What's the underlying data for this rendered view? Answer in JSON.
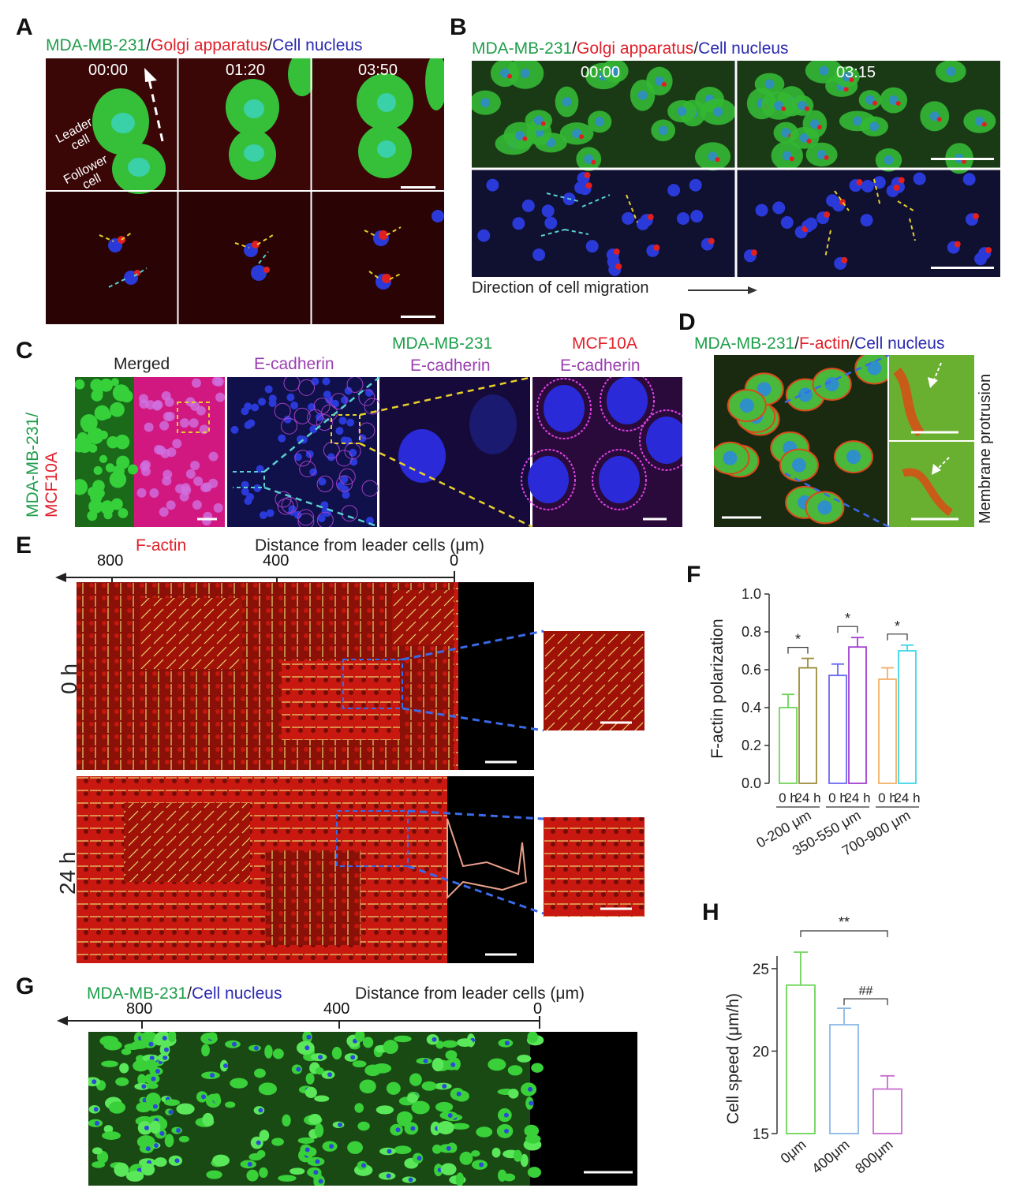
{
  "panels": {
    "A": {
      "letter": "A",
      "title_parts": [
        "MDA-MB-231",
        "/",
        "Golgi apparatus",
        "/",
        "Cell nucleus"
      ],
      "timestamps": [
        "00:00",
        "01:20",
        "03:50"
      ],
      "leader_label": "Leader cell",
      "follower_label": "Follower cell"
    },
    "B": {
      "letter": "B",
      "title_parts": [
        "MDA-MB-231",
        "/",
        "Golgi apparatus",
        "/",
        "Cell nucleus"
      ],
      "timestamps": [
        "00:00",
        "03:15"
      ],
      "direction_label": "Direction of cell migration"
    },
    "C": {
      "letter": "C",
      "side_label_top": "MDA-MB-231/",
      "side_label_bottom": "MCF10A",
      "col1": "Merged",
      "col2": "E-cadherin",
      "col3_top": "MDA-MB-231",
      "col3_bottom": "E-cadherin",
      "col4_top": "MCF10A",
      "col4_bottom": "E-cadherin"
    },
    "D": {
      "letter": "D",
      "title_parts": [
        "MDA-MB-231",
        "/",
        "F-actin",
        "/",
        "Cell nucleus"
      ],
      "side_label": "Membrane protrusion"
    },
    "E": {
      "letter": "E",
      "stain_label": "F-actin",
      "axis_title": "Distance from leader cells (μm)",
      "ticks": [
        "800",
        "400",
        "0"
      ],
      "row_labels": [
        "0 h",
        "24 h"
      ]
    },
    "G": {
      "letter": "G",
      "title_parts": [
        "MDA-MB-231",
        "/",
        "Cell nucleus"
      ],
      "axis_title": "Distance from leader cells (μm)",
      "ticks": [
        "800",
        "400",
        "0"
      ]
    }
  },
  "chart_data": [
    {
      "id": "F",
      "letter": "F",
      "type": "bar",
      "ylabel": "F-actin  polarization",
      "ylim": [
        0.0,
        1.0
      ],
      "yticks": [
        "0.0",
        "0.2",
        "0.4",
        "0.6",
        "0.8",
        "1.0"
      ],
      "categories": [
        "0 h",
        "24 h",
        "0 h",
        "24 h",
        "0 h",
        "24 h"
      ],
      "groups": [
        "0-200 μm",
        "350-550 μm",
        "700-900 μm"
      ],
      "values": [
        0.4,
        0.61,
        0.57,
        0.72,
        0.55,
        0.7
      ],
      "errors": [
        0.07,
        0.05,
        0.06,
        0.05,
        0.06,
        0.03
      ],
      "colors": [
        "#6fd35a",
        "#9c8c3a",
        "#6a6af0",
        "#a23fd0",
        "#f2b06a",
        "#3fd6e6"
      ],
      "significance": [
        "*",
        "*",
        "*"
      ]
    },
    {
      "id": "H",
      "letter": "H",
      "type": "bar",
      "ylabel": "Cell speed (μm/h)",
      "ylim": [
        15,
        26
      ],
      "yticks": [
        "15",
        "20",
        "25"
      ],
      "categories": [
        "0μm",
        "400μm",
        "800μm"
      ],
      "values": [
        24.0,
        21.6,
        17.7
      ],
      "errors": [
        2.0,
        1.0,
        0.8
      ],
      "colors": [
        "#6fd35a",
        "#8ab8e8",
        "#c86ad0"
      ],
      "significance": [
        "**",
        "##"
      ]
    }
  ]
}
